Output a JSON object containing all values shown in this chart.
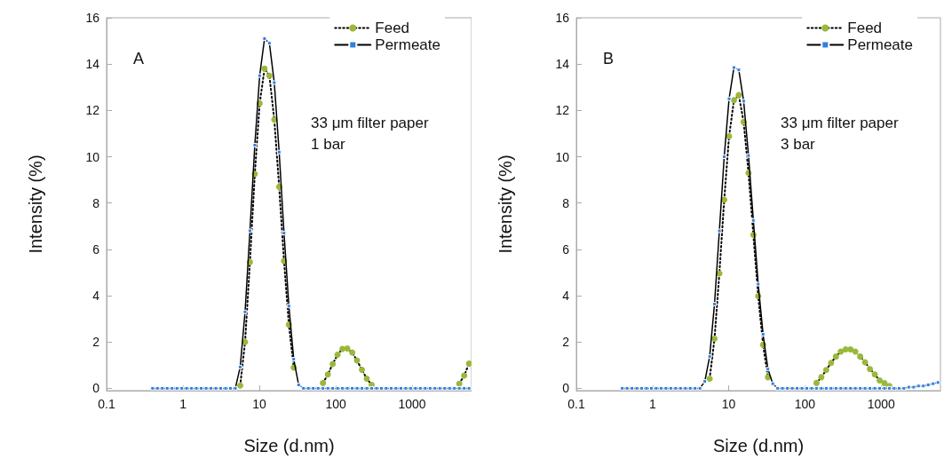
{
  "chart_data": [
    {
      "type": "line",
      "title": "A",
      "xlabel": "Size (d.nm)",
      "ylabel": "Intensity (%)",
      "annotations": [
        "33 μm filter paper",
        "1 bar"
      ],
      "x": [
        0.4,
        0.4632,
        0.5365,
        0.6213,
        0.7195,
        0.8332,
        0.9649,
        1.117,
        1.294,
        1.499,
        1.736,
        2.01,
        2.328,
        2.696,
        3.122,
        3.615,
        4.187,
        4.849,
        5.615,
        6.503,
        7.531,
        8.721,
        10.1,
        11.7,
        13.54,
        15.69,
        18.17,
        21.04,
        24.36,
        28.21,
        32.67,
        37.84,
        43.82,
        50.75,
        58.77,
        68.06,
        78.82,
        91.28,
        105.7,
        122.4,
        141.8,
        164.2,
        190.1,
        220.2,
        255,
        295.3,
        342,
        396.1,
        458.7,
        531.2,
        615.1,
        712.4,
        825,
        955.4,
        1106,
        1281,
        1484,
        1718,
        1990,
        2305,
        2669,
        3091,
        3580,
        4145,
        4801,
        5560
      ],
      "series": [
        {
          "name": "Feed",
          "color": "#9ab83a",
          "marker": "circle",
          "line_style": "dotted",
          "values": [
            null,
            null,
            null,
            null,
            null,
            null,
            null,
            null,
            null,
            null,
            null,
            null,
            null,
            null,
            null,
            null,
            null,
            null,
            0.12,
            2.0,
            5.45,
            9.25,
            12.3,
            13.8,
            13.5,
            11.6,
            8.7,
            5.5,
            2.75,
            0.9,
            null,
            null,
            null,
            null,
            null,
            0.23,
            0.6,
            1.05,
            1.45,
            1.7,
            1.72,
            1.55,
            1.2,
            0.8,
            0.42,
            0.15,
            null,
            null,
            null,
            null,
            null,
            null,
            null,
            null,
            null,
            null,
            null,
            null,
            null,
            null,
            null,
            null,
            null,
            0.2,
            0.55,
            1.07
          ]
        },
        {
          "name": "Permeate",
          "color": "#2f7fe0",
          "marker": "square",
          "line_style": "solid",
          "values": [
            0,
            0,
            0,
            0,
            0,
            0,
            0,
            0,
            0,
            0,
            0,
            0,
            0,
            0,
            0,
            0,
            0,
            0,
            0.92,
            3.3,
            6.8,
            10.5,
            13.5,
            15.1,
            14.9,
            13.2,
            10.2,
            6.7,
            3.55,
            1.26,
            0.15,
            0,
            0,
            0,
            0,
            0,
            0,
            0,
            0,
            0,
            0,
            0,
            0,
            0,
            0,
            0,
            0,
            0,
            0,
            0,
            0,
            0,
            0,
            0,
            0,
            0,
            0,
            0,
            0,
            0,
            0,
            0,
            0,
            0,
            0,
            0
          ]
        }
      ],
      "log": "x",
      "xlim": [
        0.1,
        6000
      ],
      "xticks": [
        0.1,
        1,
        10,
        100,
        1000
      ],
      "ylim": [
        -0.1,
        16
      ],
      "yticks": [
        0,
        2,
        4,
        6,
        8,
        10,
        12,
        14,
        16
      ],
      "grid": false,
      "legend": "top right"
    },
    {
      "type": "line",
      "title": "B",
      "xlabel": "Size (d.nm)",
      "ylabel": "Intensity (%)",
      "annotations": [
        "33 μm filter paper",
        "3 bar"
      ],
      "x": [
        0.4,
        0.4632,
        0.5365,
        0.6213,
        0.7195,
        0.8332,
        0.9649,
        1.117,
        1.294,
        1.499,
        1.736,
        2.01,
        2.328,
        2.696,
        3.122,
        3.615,
        4.187,
        4.849,
        5.615,
        6.503,
        7.531,
        8.721,
        10.1,
        11.7,
        13.54,
        15.69,
        18.17,
        21.04,
        24.36,
        28.21,
        32.67,
        37.84,
        43.82,
        50.75,
        58.77,
        68.06,
        78.82,
        91.28,
        105.7,
        122.4,
        141.8,
        164.2,
        190.1,
        220.2,
        255,
        295.3,
        342,
        396.1,
        458.7,
        531.2,
        615.1,
        712.4,
        825,
        955.4,
        1106,
        1281,
        1484,
        1718,
        1990,
        2305,
        2669,
        3091,
        3580,
        4145,
        4801,
        5560
      ],
      "series": [
        {
          "name": "Feed",
          "color": "#9ab83a",
          "marker": "circle",
          "line_style": "dotted",
          "values": [
            null,
            null,
            null,
            null,
            null,
            null,
            null,
            null,
            null,
            null,
            null,
            null,
            null,
            null,
            null,
            null,
            null,
            null,
            0.42,
            2.14,
            4.96,
            8.14,
            10.88,
            12.44,
            12.66,
            11.5,
            9.3,
            6.63,
            3.98,
            1.88,
            0.48,
            null,
            null,
            null,
            null,
            null,
            null,
            null,
            null,
            null,
            0.23,
            0.48,
            0.79,
            1.1,
            1.37,
            1.59,
            1.68,
            1.68,
            1.59,
            1.37,
            1.13,
            0.83,
            0.6,
            0.34,
            0.22,
            0.1,
            null,
            null,
            null,
            null,
            null,
            null,
            null,
            null,
            null,
            null
          ]
        },
        {
          "name": "Permeate",
          "color": "#2f7fe0",
          "marker": "square",
          "line_style": "solid",
          "values": [
            0,
            0,
            0,
            0,
            0,
            0,
            0,
            0,
            0,
            0,
            0,
            0,
            0,
            0,
            0,
            0,
            0,
            0.3,
            1.37,
            3.64,
            6.8,
            10,
            12.5,
            13.85,
            13.75,
            12.4,
            10.05,
            7.25,
            4.5,
            2.33,
            0.83,
            0.2,
            0,
            0,
            0,
            0,
            0,
            0,
            0,
            0,
            0,
            0,
            0,
            0,
            0,
            0,
            0,
            0,
            0,
            0,
            0,
            0,
            0,
            0,
            0,
            0,
            0,
            0,
            0,
            0.05,
            0.05,
            0.1,
            0.1,
            0.15,
            0.2,
            0.25
          ]
        }
      ],
      "log": "x",
      "xlim": [
        0.1,
        6000
      ],
      "xticks": [
        0.1,
        1,
        10,
        100,
        1000
      ],
      "ylim": [
        -0.1,
        16
      ],
      "yticks": [
        0,
        2,
        4,
        6,
        8,
        10,
        12,
        14,
        16
      ],
      "grid": false,
      "legend": "top right"
    }
  ]
}
